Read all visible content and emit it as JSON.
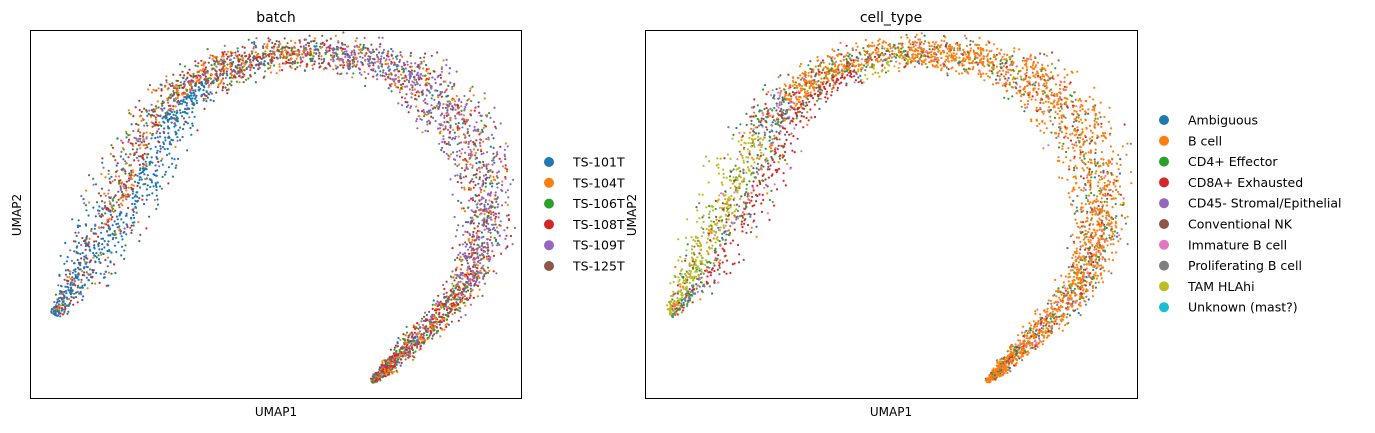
{
  "chart_data": [
    {
      "type": "scatter",
      "title": "batch",
      "xlabel": "UMAP1",
      "ylabel": "UMAP2",
      "grid": false,
      "xticks": [],
      "yticks": [],
      "legend_position": "right",
      "series": [
        {
          "name": "TS-101T",
          "color": "#1f77b4"
        },
        {
          "name": "TS-104T",
          "color": "#ff7f0e"
        },
        {
          "name": "TS-106T",
          "color": "#2ca02c"
        },
        {
          "name": "TS-108T",
          "color": "#d62728"
        },
        {
          "name": "TS-109T",
          "color": "#9467bd"
        },
        {
          "name": "TS-125T",
          "color": "#8c564b"
        }
      ]
    },
    {
      "type": "scatter",
      "title": "cell_type",
      "xlabel": "UMAP1",
      "ylabel": "UMAP2",
      "grid": false,
      "xticks": [],
      "yticks": [],
      "legend_position": "right",
      "series": [
        {
          "name": "Ambiguous",
          "color": "#1f77b4"
        },
        {
          "name": "B cell",
          "color": "#ff7f0e"
        },
        {
          "name": "CD4+ Effector",
          "color": "#2ca02c"
        },
        {
          "name": "CD8A+ Exhausted",
          "color": "#d62728"
        },
        {
          "name": "CD45- Stromal/Epithelial",
          "color": "#9467bd"
        },
        {
          "name": "Conventional NK",
          "color": "#8c564b"
        },
        {
          "name": "Immature B cell",
          "color": "#e377c2"
        },
        {
          "name": "Proliferating B cell",
          "color": "#7f7f7f"
        },
        {
          "name": "TAM HLAhi",
          "color": "#bcbd22"
        },
        {
          "name": "Unknown (mast?)",
          "color": "#17becf"
        }
      ]
    }
  ]
}
